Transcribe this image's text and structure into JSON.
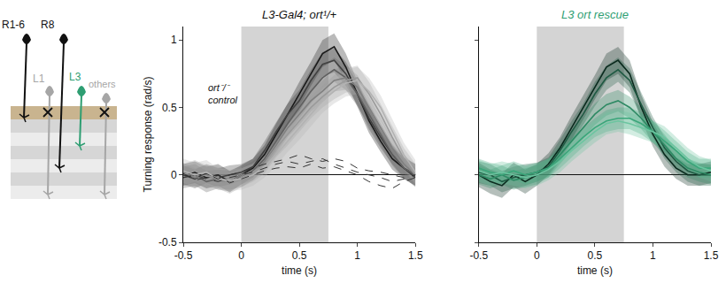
{
  "diagram": {
    "cells": [
      {
        "label": "R1-6"
      },
      {
        "label": "R8"
      },
      {
        "label": "L1"
      },
      {
        "label": "L3"
      },
      {
        "label": "others"
      }
    ]
  },
  "chart_data": [
    {
      "type": "line",
      "title": "L3-Gal4; ort¹/+",
      "x_label": "time (s)",
      "y_label": "Turning response (rad/s)",
      "x": [
        -0.5,
        -0.4,
        -0.3,
        -0.2,
        -0.1,
        0,
        0.1,
        0.2,
        0.3,
        0.4,
        0.5,
        0.6,
        0.7,
        0.8,
        0.9,
        1.0,
        1.1,
        1.2,
        1.3,
        1.4,
        1.5
      ],
      "xlim": [
        -0.5,
        1.5
      ],
      "xticks": [
        -0.5,
        0,
        0.5,
        1,
        1.5
      ],
      "ylim": [
        -0.5,
        1.1
      ],
      "yticks": [
        -0.5,
        0,
        0.5,
        1
      ],
      "grid": false,
      "stimulus": [
        0,
        0.75
      ],
      "annotations": [
        {
          "text": [
            "ort⁻/⁻",
            "control"
          ]
        }
      ],
      "series": [
        {
          "color": "#1a1a1a",
          "line_style": "solid",
          "values": [
            0,
            0.02,
            -0.02,
            0,
            -0.05,
            0,
            0.05,
            0.15,
            0.3,
            0.45,
            0.6,
            0.75,
            0.9,
            0.95,
            0.8,
            0.6,
            0.4,
            0.25,
            0.12,
            0.05,
            0
          ],
          "error": [
            0.08,
            0.08,
            0.08,
            0.08,
            0.08,
            0.07,
            0.07,
            0.07,
            0.08,
            0.08,
            0.09,
            0.09,
            0.1,
            0.1,
            0.1,
            0.09,
            0.09,
            0.08,
            0.08,
            0.08,
            0.08
          ]
        },
        {
          "color": "#404040",
          "line_style": "solid",
          "values": [
            0,
            -0.03,
            0.01,
            -0.02,
            0,
            0.02,
            0.06,
            0.18,
            0.32,
            0.45,
            0.55,
            0.7,
            0.82,
            0.85,
            0.75,
            0.6,
            0.42,
            0.28,
            0.15,
            0.05,
            -0.02
          ],
          "error": [
            0.07,
            0.07,
            0.07,
            0.07,
            0.07,
            0.06,
            0.06,
            0.07,
            0.07,
            0.08,
            0.08,
            0.08,
            0.09,
            0.09,
            0.09,
            0.08,
            0.08,
            0.08,
            0.07,
            0.07,
            0.07
          ]
        },
        {
          "color": "#606060",
          "line_style": "solid",
          "values": [
            -0.02,
            0,
            -0.05,
            -0.03,
            -0.04,
            -0.02,
            0.03,
            0.12,
            0.25,
            0.38,
            0.5,
            0.62,
            0.72,
            0.78,
            0.72,
            0.6,
            0.45,
            0.3,
            0.15,
            0.05,
            0
          ],
          "error": [
            0.08,
            0.08,
            0.08,
            0.07,
            0.07,
            0.07,
            0.07,
            0.07,
            0.08,
            0.08,
            0.08,
            0.09,
            0.09,
            0.09,
            0.09,
            0.09,
            0.08,
            0.08,
            0.08,
            0.08,
            0.08
          ]
        },
        {
          "color": "#808080",
          "line_style": "solid",
          "values": [
            0.02,
            -0.02,
            0,
            -0.04,
            -0.05,
            0,
            0.02,
            0.1,
            0.22,
            0.35,
            0.45,
            0.55,
            0.62,
            0.7,
            0.72,
            0.65,
            0.5,
            0.35,
            0.2,
            0.08,
            0
          ],
          "error": [
            0.07,
            0.07,
            0.07,
            0.07,
            0.07,
            0.07,
            0.06,
            0.07,
            0.07,
            0.07,
            0.08,
            0.08,
            0.08,
            0.08,
            0.09,
            0.09,
            0.08,
            0.08,
            0.07,
            0.07,
            0.07
          ]
        },
        {
          "color": "#9a9a9a",
          "line_style": "solid",
          "values": [
            0,
            0.03,
            -0.01,
            -0.02,
            -0.06,
            -0.02,
            0.02,
            0.08,
            0.2,
            0.3,
            0.4,
            0.5,
            0.58,
            0.65,
            0.7,
            0.72,
            0.6,
            0.45,
            0.28,
            0.12,
            0
          ],
          "error": [
            0.08,
            0.08,
            0.08,
            0.08,
            0.08,
            0.07,
            0.07,
            0.07,
            0.07,
            0.08,
            0.08,
            0.08,
            0.08,
            0.09,
            0.09,
            0.09,
            0.09,
            0.08,
            0.08,
            0.08,
            0.08
          ]
        },
        {
          "color": "#b3b3b3",
          "line_style": "solid",
          "values": [
            0.03,
            0,
            0.02,
            -0.03,
            -0.04,
            -0.03,
            0,
            0.06,
            0.15,
            0.25,
            0.35,
            0.45,
            0.55,
            0.62,
            0.68,
            0.7,
            0.62,
            0.5,
            0.32,
            0.15,
            0.02
          ],
          "error": [
            0.09,
            0.09,
            0.09,
            0.08,
            0.08,
            0.08,
            0.08,
            0.08,
            0.08,
            0.08,
            0.09,
            0.09,
            0.09,
            0.09,
            0.1,
            0.1,
            0.1,
            0.09,
            0.09,
            0.09,
            0.09
          ]
        },
        {
          "color": "#333333",
          "line_style": "dashed",
          "values": [
            0,
            -0.02,
            0.01,
            -0.03,
            0,
            0.02,
            0.05,
            0.08,
            0.1,
            0.12,
            0.15,
            0.12,
            0.1,
            0.12,
            0.1,
            0.05,
            0.03,
            0.02,
            0,
            -0.02,
            0
          ]
        },
        {
          "color": "#333333",
          "line_style": "dashed",
          "values": [
            -0.02,
            0,
            -0.03,
            -0.05,
            -0.02,
            0,
            0.02,
            0.05,
            0.08,
            0.1,
            0.08,
            0.1,
            0.12,
            0.08,
            0.05,
            0.02,
            0,
            -0.02,
            -0.05,
            -0.03,
            0
          ]
        },
        {
          "color": "#333333",
          "line_style": "dashed",
          "values": [
            0.01,
            -0.04,
            -0.02,
            0,
            -0.06,
            -0.03,
            0,
            0.03,
            0.05,
            0.06,
            0.05,
            0.08,
            0.05,
            0.06,
            0.03,
            0,
            -0.05,
            -0.08,
            -0.1,
            -0.05,
            -0.02
          ]
        }
      ]
    },
    {
      "type": "line",
      "title": "L3 ort rescue",
      "x_label": "time (s)",
      "x": [
        -0.5,
        -0.4,
        -0.3,
        -0.2,
        -0.1,
        0,
        0.1,
        0.2,
        0.3,
        0.4,
        0.5,
        0.6,
        0.7,
        0.8,
        0.9,
        1.0,
        1.1,
        1.2,
        1.3,
        1.4,
        1.5
      ],
      "xlim": [
        -0.5,
        1.5
      ],
      "xticks": [
        -0.5,
        0,
        0.5,
        1,
        1.5
      ],
      "ylim": [
        -0.5,
        1.1
      ],
      "yticks": [
        -0.5,
        0,
        0.5,
        1
      ],
      "tick_labels": "x",
      "grid": false,
      "stimulus": [
        0,
        0.75
      ],
      "series": [
        {
          "color": "#0b2a1e",
          "line_style": "solid",
          "values": [
            0,
            -0.05,
            -0.08,
            0,
            -0.05,
            0,
            0.08,
            0.2,
            0.35,
            0.5,
            0.65,
            0.8,
            0.85,
            0.75,
            0.5,
            0.3,
            0.15,
            0.05,
            0,
            0,
            0.02
          ],
          "error": [
            0.09,
            0.09,
            0.09,
            0.09,
            0.09,
            0.08,
            0.08,
            0.08,
            0.09,
            0.09,
            0.09,
            0.1,
            0.1,
            0.1,
            0.09,
            0.09,
            0.09,
            0.08,
            0.08,
            0.08,
            0.08
          ]
        },
        {
          "color": "#1f5a43",
          "line_style": "solid",
          "values": [
            0.02,
            0,
            -0.05,
            -0.02,
            0,
            0.02,
            0.06,
            0.18,
            0.32,
            0.45,
            0.6,
            0.72,
            0.78,
            0.7,
            0.52,
            0.35,
            0.2,
            0.1,
            0.03,
            0,
            0
          ],
          "error": [
            0.08,
            0.08,
            0.08,
            0.08,
            0.08,
            0.07,
            0.07,
            0.08,
            0.08,
            0.08,
            0.09,
            0.09,
            0.09,
            0.09,
            0.09,
            0.08,
            0.08,
            0.08,
            0.08,
            0.08,
            0.08
          ]
        },
        {
          "color": "#2e8a64",
          "line_style": "solid",
          "values": [
            0,
            -0.03,
            0,
            -0.04,
            -0.02,
            0,
            0.05,
            0.15,
            0.25,
            0.35,
            0.45,
            0.52,
            0.55,
            0.5,
            0.42,
            0.32,
            0.22,
            0.12,
            0.05,
            0.02,
            0
          ],
          "error": [
            0.07,
            0.07,
            0.07,
            0.07,
            0.07,
            0.07,
            0.07,
            0.07,
            0.07,
            0.08,
            0.08,
            0.08,
            0.08,
            0.08,
            0.08,
            0.08,
            0.08,
            0.07,
            0.07,
            0.07,
            0.07
          ]
        },
        {
          "color": "#3aa67a",
          "line_style": "solid",
          "values": [
            0.05,
            0.02,
            0,
            0.03,
            0,
            0.02,
            0.05,
            0.12,
            0.2,
            0.28,
            0.35,
            0.4,
            0.42,
            0.42,
            0.38,
            0.32,
            0.25,
            0.18,
            0.1,
            0.05,
            0.05
          ],
          "error": [
            0.07,
            0.07,
            0.07,
            0.07,
            0.07,
            0.07,
            0.07,
            0.07,
            0.07,
            0.07,
            0.07,
            0.08,
            0.08,
            0.08,
            0.08,
            0.08,
            0.08,
            0.07,
            0.07,
            0.07,
            0.07
          ]
        },
        {
          "color": "#6cc5a0",
          "line_style": "solid",
          "values": [
            0.03,
            0,
            0.02,
            0,
            -0.02,
            0,
            0.04,
            0.1,
            0.18,
            0.25,
            0.32,
            0.38,
            0.4,
            0.38,
            0.35,
            0.32,
            0.28,
            0.2,
            0.12,
            0.06,
            0.03
          ],
          "error": [
            0.08,
            0.08,
            0.08,
            0.08,
            0.08,
            0.08,
            0.08,
            0.08,
            0.08,
            0.08,
            0.08,
            0.08,
            0.08,
            0.08,
            0.08,
            0.08,
            0.08,
            0.08,
            0.08,
            0.08,
            0.08
          ]
        }
      ]
    }
  ]
}
